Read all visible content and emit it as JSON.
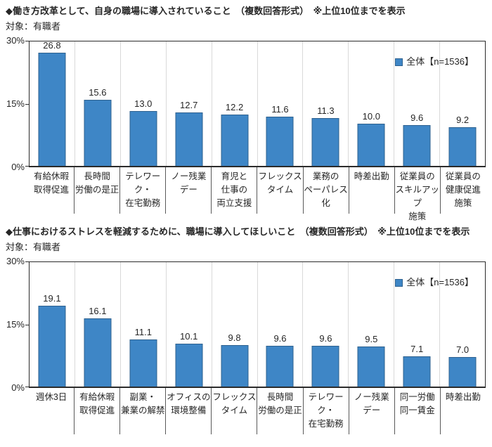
{
  "colors": {
    "bar_fill": "#3e86c6",
    "bar_border": "#2e618f",
    "gridline": "#d9d9d9",
    "axis": "#2b2b2b",
    "label_separator": "#595959"
  },
  "chart_data": [
    {
      "type": "bar",
      "title": "◆働き方改革として、自身の職場に導入されていること　（複数回答形式）　※上位10位までを表示",
      "subject": "対象：有職者",
      "legend": "全体【n=1536】",
      "legend_position": "top-right-inside",
      "ylabel": "",
      "xlabel": "",
      "ylim": [
        0,
        30
      ],
      "yticks": [
        {
          "value": 30,
          "label": "30%"
        },
        {
          "value": 15,
          "label": "15%"
        },
        {
          "value": 0,
          "label": "0%"
        }
      ],
      "grid": "vertical-category-separators",
      "categories": [
        [
          "有給休暇",
          "取得促進"
        ],
        [
          "長時間",
          "労働の是正"
        ],
        [
          "テレワーク・",
          "在宅勤務"
        ],
        [
          "ノー残業",
          "デー"
        ],
        [
          "育児と",
          "仕事の",
          "両立支援"
        ],
        [
          "フレックス",
          "タイム"
        ],
        [
          "業務の",
          "ペーパレス化"
        ],
        [
          "時差出勤"
        ],
        [
          "従業員の",
          "スキルアップ",
          "施策"
        ],
        [
          "従業員の",
          "健康促進",
          "施策"
        ]
      ],
      "values": [
        26.8,
        15.6,
        13.0,
        12.7,
        12.2,
        11.6,
        11.3,
        10.0,
        9.6,
        9.2
      ]
    },
    {
      "type": "bar",
      "title": "◆仕事におけるストレスを軽減するために、職場に導入してほしいこと　（複数回答形式）　※上位10位までを表示",
      "subject": "対象：有職者",
      "legend": "全体【n=1536】",
      "legend_position": "top-right-inside",
      "ylabel": "",
      "xlabel": "",
      "ylim": [
        0,
        30
      ],
      "yticks": [
        {
          "value": 30,
          "label": "30%"
        },
        {
          "value": 15,
          "label": "15%"
        },
        {
          "value": 0,
          "label": "0%"
        }
      ],
      "grid": "vertical-category-separators",
      "categories": [
        [
          "週休3日"
        ],
        [
          "有給休暇",
          "取得促進"
        ],
        [
          "副業・",
          "兼業の解禁"
        ],
        [
          "オフィスの",
          "環境整備"
        ],
        [
          "フレックス",
          "タイム"
        ],
        [
          "長時間",
          "労働の是正"
        ],
        [
          "テレワーク・",
          "在宅勤務"
        ],
        [
          "ノー残業",
          "デー"
        ],
        [
          "同一労働",
          "同一賃金"
        ],
        [
          "時差出勤"
        ]
      ],
      "values": [
        19.1,
        16.1,
        11.1,
        10.1,
        9.8,
        9.6,
        9.6,
        9.5,
        7.1,
        7.0
      ]
    }
  ]
}
